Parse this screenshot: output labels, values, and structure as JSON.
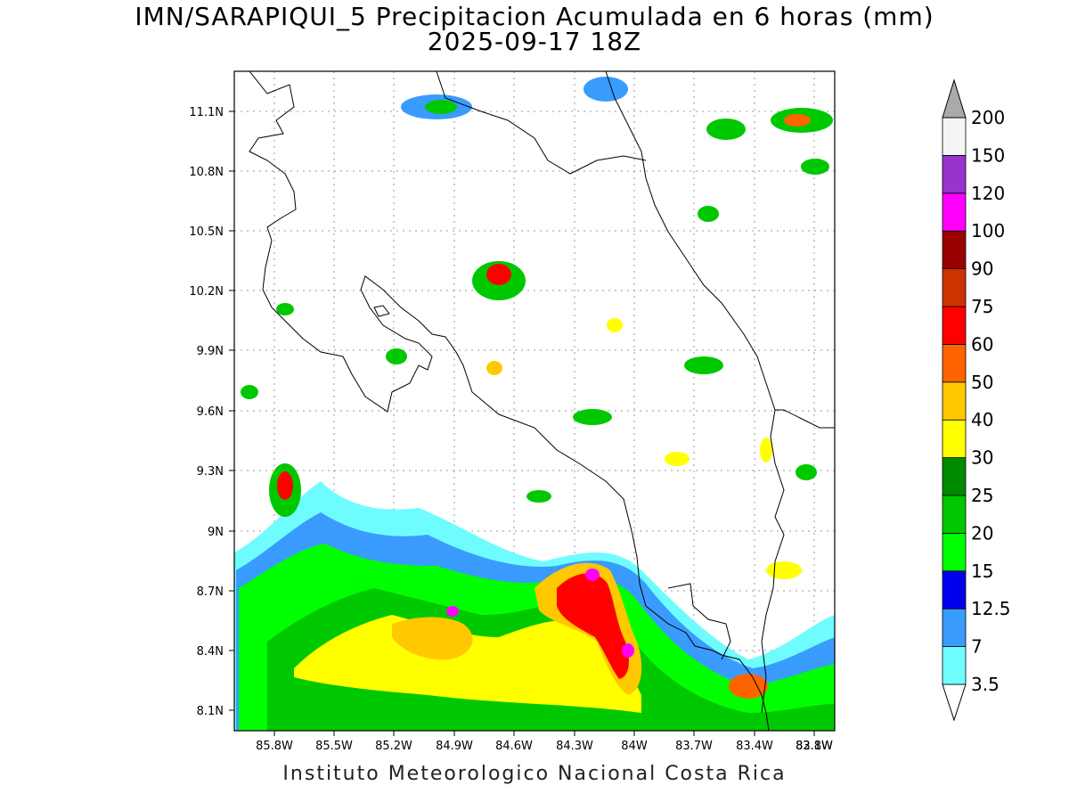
{
  "title_line1": "IMN/SARAPIQUI_5 Precipitacion Acumulada en 6 horas (mm)",
  "title_line2": "2025-09-17 18Z",
  "footer": "Instituto Meteorologico Nacional Costa Rica",
  "map": {
    "lon_ticks": [
      "85.8W",
      "85.5W",
      "85.2W",
      "84.9W",
      "84.6W",
      "84.3W",
      "84W",
      "83.7W",
      "83.4W",
      "83.1W",
      "82.8W"
    ],
    "lat_ticks": [
      "11.1N",
      "10.8N",
      "10.5N",
      "10.2N",
      "9.9N",
      "9.6N",
      "9.3N",
      "9N",
      "8.7N",
      "8.4N",
      "8.1N"
    ]
  },
  "colorbar": {
    "labels": [
      "3.5",
      "7",
      "12.5",
      "15",
      "20",
      "25",
      "30",
      "40",
      "50",
      "60",
      "75",
      "90",
      "100",
      "120",
      "150",
      "200"
    ],
    "colors": [
      "#6ffcff",
      "#3a9bff",
      "#0000ee",
      "#00ff00",
      "#00c800",
      "#008a00",
      "#ffff00",
      "#ffc800",
      "#ff6400",
      "#ff0000",
      "#cc3300",
      "#990000",
      "#ff00ff",
      "#9933cc",
      "#f5f5f5",
      "#aaaaaa"
    ]
  }
}
